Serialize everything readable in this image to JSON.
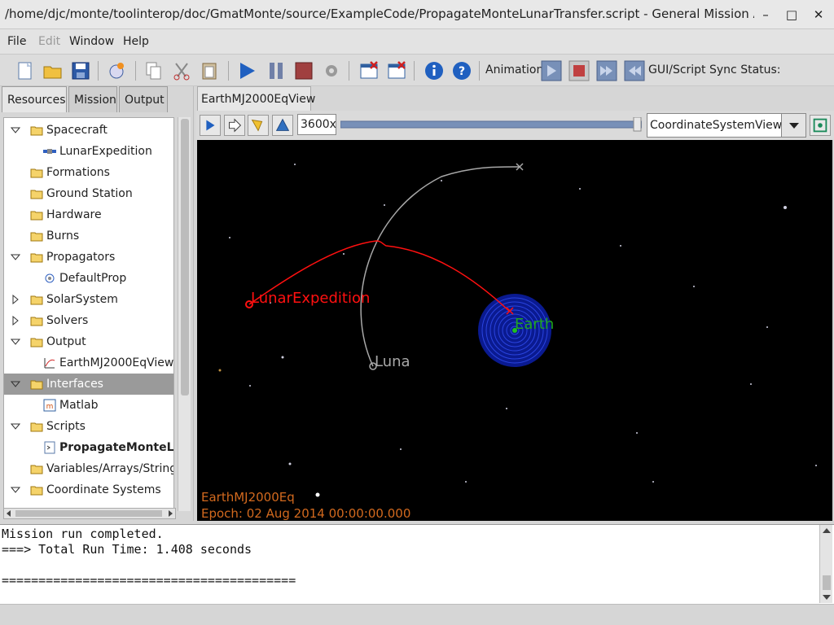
{
  "window": {
    "title": "/home/djc/monte/toolinterop/doc/GmatMonte/source/ExampleCode/PropagateMonteLunarTransfer.script - General Mission Analysis To...",
    "minimize": "–",
    "maximize": "□",
    "close": "✕"
  },
  "menubar": {
    "file": "File",
    "edit": "Edit",
    "window": "Window",
    "help": "Help"
  },
  "toolbar": {
    "animation_label": "Animation",
    "sync_label": "GUI/Script Sync Status:"
  },
  "left_tabs": {
    "resources": "Resources",
    "mission": "Mission",
    "output": "Output"
  },
  "tree": [
    {
      "label": "Spacecraft",
      "expanded": true
    },
    {
      "label": "LunarExpedition"
    },
    {
      "label": "Formations"
    },
    {
      "label": "Ground Station"
    },
    {
      "label": "Hardware"
    },
    {
      "label": "Burns"
    },
    {
      "label": "Propagators",
      "expanded": true
    },
    {
      "label": "DefaultProp"
    },
    {
      "label": "SolarSystem",
      "expanded": false
    },
    {
      "label": "Solvers",
      "expanded": false
    },
    {
      "label": "Output",
      "expanded": true
    },
    {
      "label": "EarthMJ2000EqView"
    },
    {
      "label": "Interfaces",
      "expanded": true
    },
    {
      "label": "Matlab"
    },
    {
      "label": "Scripts",
      "expanded": true
    },
    {
      "label": "PropagateMonteLunarTransfer.script"
    },
    {
      "label": "Variables/Arrays/Strings"
    },
    {
      "label": "Coordinate Systems",
      "expanded": true
    }
  ],
  "view": {
    "tab_label": "EarthMJ2000EqView",
    "speed": "3600x",
    "coordinate_system": "CoordinateSystemView1",
    "overlay_name": "EarthMJ2000Eq",
    "epoch": "Epoch: 02 Aug 2014 00:00:00.000"
  },
  "plot_labels": {
    "spacecraft": "LunarExpedition",
    "earth": "Earth",
    "luna": "Luna"
  },
  "colors": {
    "spacecraft": "#ff1010",
    "earth_label": "#1fa51f",
    "earth_disk": "#1b2fd0",
    "luna": "#a8a8a8",
    "overlay_text": "#d2691e"
  },
  "console": {
    "line1": "Mission run completed.",
    "line2": "===> Total Run Time: 1.408 seconds",
    "line3": "",
    "line4": "========================================"
  }
}
